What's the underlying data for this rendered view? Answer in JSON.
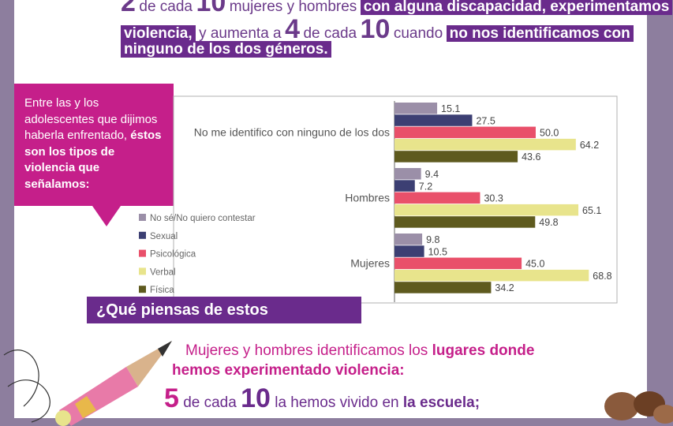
{
  "headline": {
    "line1_a": "2",
    "line1_b": "de cada",
    "line1_c": "10",
    "line1_d": "mujeres y hombres",
    "line1_hl": "con alguna discapacidad, experimentamos",
    "line2_hl": "violencia,",
    "line2_a": "y aumenta a",
    "line2_b": "4",
    "line2_c": "de cada",
    "line2_d": "10",
    "line2_e": "cuando",
    "line2_hl2": "no nos identificamos con",
    "line3_hl": "ninguno de los dos géneros."
  },
  "intro": {
    "text": "Entre las y los adolescentes que dijimos haberla enfrentado,",
    "bold": "éstos son los tipos de violencia que señalamos:"
  },
  "question": "¿Qué piensas de estos resultados?",
  "chart_data": {
    "type": "bar",
    "orientation": "horizontal",
    "categories": [
      "No me identifico con ninguno de los dos",
      "Hombres",
      "Mujeres"
    ],
    "series": [
      {
        "name": "No sé/No quiero contestar",
        "color": "#9b8fa8",
        "values": [
          15.1,
          9.4,
          9.8
        ]
      },
      {
        "name": "Sexual",
        "color": "#3c3f73",
        "values": [
          27.5,
          7.2,
          10.5
        ]
      },
      {
        "name": "Psicológica",
        "color": "#e9506a",
        "values": [
          50.0,
          30.3,
          45.0
        ]
      },
      {
        "name": "Verbal",
        "color": "#e8e48c",
        "values": [
          64.2,
          65.1,
          68.8
        ]
      },
      {
        "name": "Física",
        "color": "#5e5a1e",
        "values": [
          43.6,
          49.8,
          34.2
        ]
      }
    ],
    "xlim": [
      0,
      100
    ],
    "legend_position": "left",
    "grid": false
  },
  "bottom": {
    "line1_a": "Mujeres y hombres identificamos los",
    "line1_b": "lugares donde",
    "line2": "hemos experimentado violencia:",
    "line3_a": "5",
    "line3_b": "de cada",
    "line3_c": "10",
    "line3_d": "la hemos vivido en",
    "line3_e": "la escuela;"
  }
}
